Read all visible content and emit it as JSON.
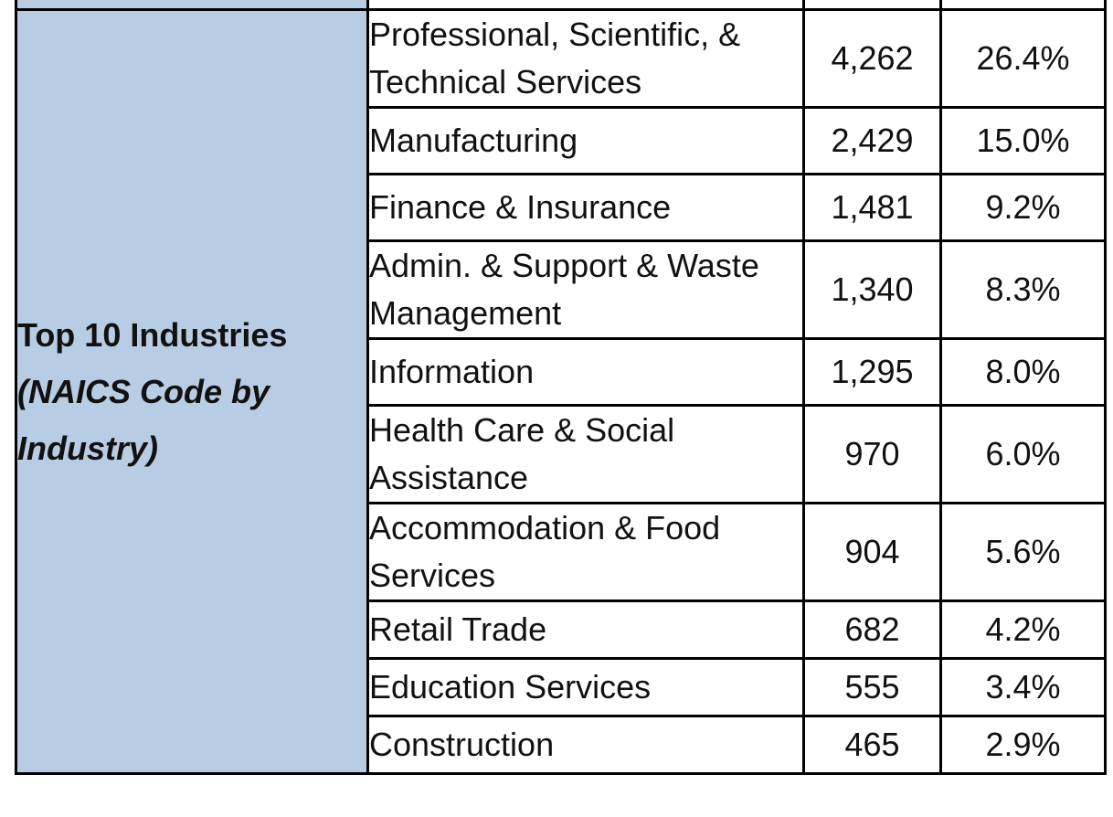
{
  "section": {
    "title": "Top 10 Industries",
    "subtitle": "(NAICS Code by Industry)"
  },
  "industries": [
    {
      "name": "Professional, Scientific, & Technical Services",
      "count": "4,262",
      "percent": "26.4%"
    },
    {
      "name": "Manufacturing",
      "count": "2,429",
      "percent": "15.0%"
    },
    {
      "name": "Finance & Insurance",
      "count": "1,481",
      "percent": "9.2%"
    },
    {
      "name": "Admin. & Support & Waste Management",
      "count": "1,340",
      "percent": "8.3%"
    },
    {
      "name": "Information",
      "count": "1,295",
      "percent": "8.0%"
    },
    {
      "name": "Health Care & Social Assistance",
      "count": "970",
      "percent": "6.0%"
    },
    {
      "name": "Accommodation & Food Services",
      "count": "904",
      "percent": "5.6%"
    },
    {
      "name": "Retail Trade",
      "count": "682",
      "percent": "4.2%"
    },
    {
      "name": "Education Services",
      "count": "555",
      "percent": "3.4%"
    },
    {
      "name": "Construction",
      "count": "465",
      "percent": "2.9%"
    }
  ],
  "colors": {
    "label_background": "#b8cce4",
    "border": "#000000",
    "text": "#111111"
  }
}
